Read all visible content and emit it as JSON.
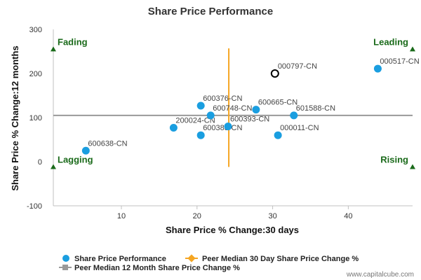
{
  "chart_data": {
    "type": "scatter",
    "title": "Share Price Performance",
    "xlabel": "Share Price % Change:30 days",
    "ylabel": "Share Price % Change:12 months",
    "xlim": [
      1,
      48.5
    ],
    "ylim": [
      -100,
      300
    ],
    "xticks": [
      10,
      20,
      30,
      40
    ],
    "yticks": [
      -100,
      0,
      100,
      200,
      300
    ],
    "grid": false,
    "legend_position": "bottom-left",
    "series": [
      {
        "name": "Share Price Performance",
        "color": "#1a9ee0",
        "points": [
          {
            "label": "600638-CN",
            "x": 5.3,
            "y": 25
          },
          {
            "label": "200024-CN",
            "x": 16.9,
            "y": 77
          },
          {
            "label": "600376-CN",
            "x": 20.5,
            "y": 127
          },
          {
            "label": "600383-CN",
            "x": 20.5,
            "y": 60
          },
          {
            "label": "600748-CN",
            "x": 21.8,
            "y": 105
          },
          {
            "label": "600393-CN",
            "x": 24.1,
            "y": 80
          },
          {
            "label": "600665-CN",
            "x": 27.8,
            "y": 118
          },
          {
            "label": "000011-CN",
            "x": 30.7,
            "y": 60
          },
          {
            "label": "601588-CN",
            "x": 32.8,
            "y": 105
          },
          {
            "label": "000517-CN",
            "x": 43.9,
            "y": 211
          }
        ]
      },
      {
        "name": "Peer Median 30 Day Share Price Change %",
        "color": "#f5a623",
        "x": 24.2,
        "y_range": [
          -12,
          257
        ]
      },
      {
        "name": "Peer Median 12 Month Share Price Change %",
        "color": "#999999",
        "y": 105,
        "x_range": [
          1,
          48.5
        ]
      }
    ],
    "highlight": {
      "label": "000797-CN",
      "x": 30.3,
      "y": 200
    },
    "quadrants": [
      {
        "label": "Fading",
        "x": 1,
        "y": 255,
        "align": "left"
      },
      {
        "label": "Leading",
        "x": 48.5,
        "y": 255,
        "align": "right"
      },
      {
        "label": "Lagging",
        "x": 1,
        "y": -12,
        "align": "left"
      },
      {
        "label": "Rising",
        "x": 48.5,
        "y": -12,
        "align": "right"
      }
    ],
    "colors": {
      "axis": "#c0c0c0",
      "quadrant": "#1a6a1a"
    }
  },
  "credit": "www.capitalcube.com"
}
